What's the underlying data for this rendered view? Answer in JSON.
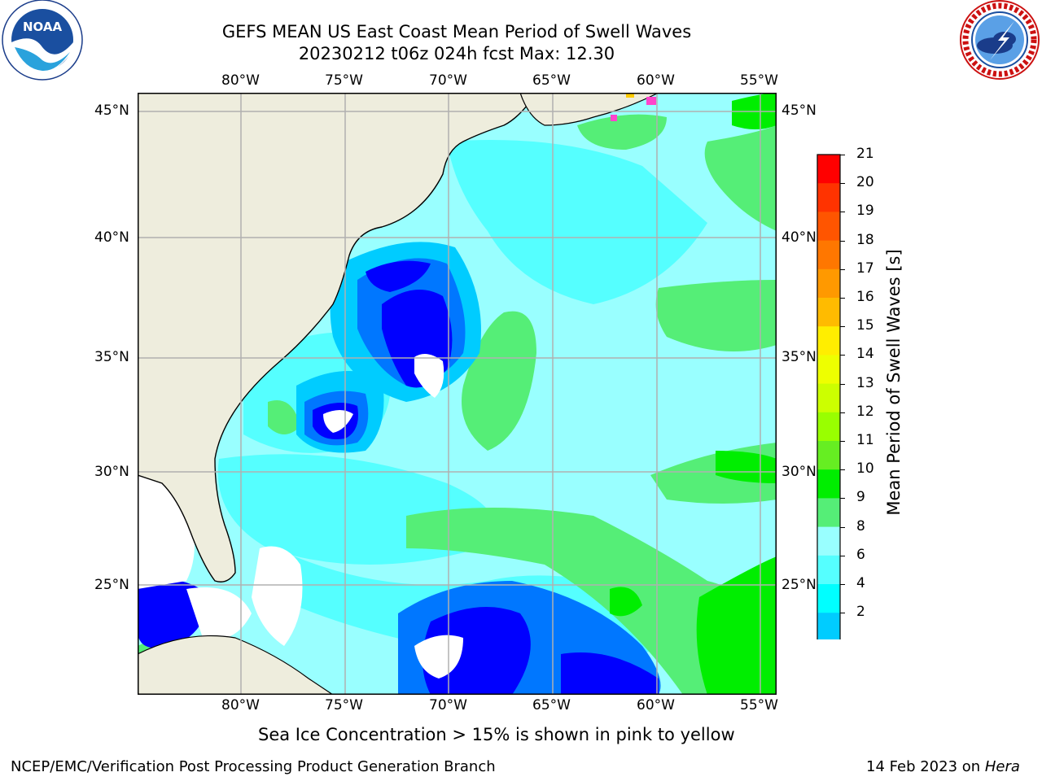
{
  "header": {
    "title_line1": "GEFS MEAN US East Coast Mean Period of Swell Waves",
    "title_line2": "20230212 t06z 024h fcst   Max: 12.30",
    "left_logo_text": "NOAA",
    "left_logo_ring_text": "NATIONAL OCEANIC AND ATMOSPHERIC ADMINISTRATION · U.S. DEPARTMENT OF COMMERCE",
    "right_logo_ring_text": "NATIONAL WEATHER SERVICE"
  },
  "map": {
    "lon_labels": [
      "80°W",
      "75°W",
      "70°W",
      "65°W",
      "60°W",
      "55°W"
    ],
    "lat_labels": [
      "45°N",
      "40°N",
      "35°N",
      "30°N",
      "25°N"
    ],
    "extent": {
      "lon": [
        -85,
        -54.5
      ],
      "lat": [
        20.5,
        46
      ]
    },
    "land_color": "#eeeddd",
    "grid_color": "#b0b0b0"
  },
  "colorbar": {
    "title": "Mean Period of Swell Waves [s]",
    "labels": [
      "21",
      "20",
      "19",
      "18",
      "17",
      "16",
      "15",
      "14",
      "13",
      "12",
      "11",
      "10",
      "9",
      "8",
      "6",
      "4",
      "2"
    ],
    "colors": [
      "#ff0000",
      "#ff3300",
      "#ff5500",
      "#ff7700",
      "#ff9900",
      "#ffbb00",
      "#ffee00",
      "#eeff00",
      "#ccff00",
      "#99ff00",
      "#66ee22",
      "#00ee00",
      "#55ee77",
      "#99ffff",
      "#55ffff",
      "#00ffff",
      "#00ccff",
      "#0077ff"
    ],
    "extend_color": "#0000ff"
  },
  "footer": {
    "note": "Sea Ice Concentration > 15% is shown in pink to yellow",
    "credit": "NCEP/EMC/Verification Post Processing Product Generation Branch",
    "date": "14 Feb 2023 on ",
    "host": "Hera"
  }
}
